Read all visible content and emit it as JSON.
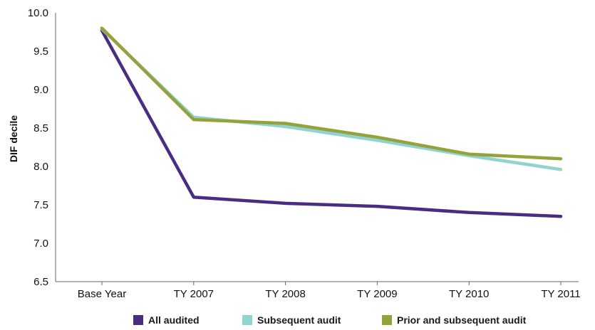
{
  "chart_data": {
    "type": "line",
    "categories": [
      "Base Year",
      "TY 2007",
      "TY 2008",
      "TY 2009",
      "TY 2010",
      "TY 2011"
    ],
    "ylabel": "DIF decile",
    "xlabel": "",
    "ylim": [
      6.5,
      10.0
    ],
    "yticks": [
      "6.5",
      "7.0",
      "7.5",
      "8.0",
      "8.5",
      "9.0",
      "9.5",
      "10.0"
    ],
    "grid": false,
    "legend_position": "bottom",
    "series": [
      {
        "name": "All audited",
        "color": "#4a2d82",
        "values": [
          9.77,
          7.6,
          7.52,
          7.48,
          7.4,
          7.35
        ]
      },
      {
        "name": "Subsequent audit",
        "color": "#8fd3d2",
        "values": [
          9.79,
          8.64,
          8.52,
          8.34,
          8.14,
          7.96
        ]
      },
      {
        "name": "Prior and subsequent audit",
        "color": "#95a23a",
        "values": [
          9.8,
          8.61,
          8.56,
          8.38,
          8.16,
          8.1
        ]
      }
    ]
  }
}
